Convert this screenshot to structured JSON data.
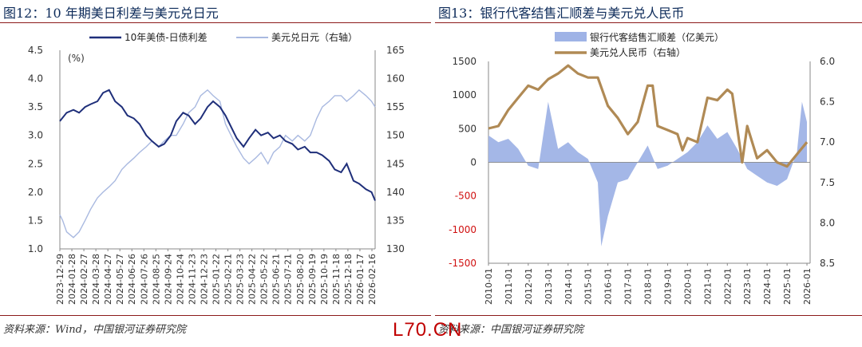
{
  "left": {
    "title": "图12：10 年期美日利差与美元兑日元",
    "source": "资料来源：Wind，中国银河证券研究院"
  },
  "right": {
    "title": "图13：银行代客结售汇顺差与美元兑人民币",
    "source": "资料来源：中国银河证券研究院"
  },
  "watermark": "L70.CN",
  "chart_data": [
    {
      "type": "line",
      "title": "10 年期美日利差与美元兑日元",
      "ylabel": "(%)",
      "ylim": [
        1.0,
        4.5
      ],
      "y2lim": [
        130,
        165
      ],
      "yticks": [
        "4.5",
        "4.0",
        "3.5",
        "3.0",
        "2.5",
        "2.0",
        "1.5",
        "1.0"
      ],
      "y2ticks": [
        "165",
        "160",
        "155",
        "150",
        "145",
        "140",
        "135",
        "130"
      ],
      "x_tick_labels": [
        "2023-12-29",
        "2024-01-28",
        "2024-02-27",
        "2024-03-28",
        "2024-04-27",
        "2024-05-27",
        "2024-06-26",
        "2024-07-26",
        "2024-08-25",
        "2024-09-24",
        "2024-10-24",
        "2024-11-23",
        "2024-12-23",
        "2025-01-22",
        "2025-02-21",
        "2025-03-23",
        "2025-04-22",
        "2025-05-22",
        "2025-06-21",
        "2025-07-21",
        "2025-08-20",
        "2025-09-19",
        "2025-10-19",
        "2025-11-18",
        "2025-12-18",
        "2026-01-17",
        "2026-02-16"
      ],
      "legend": [
        "10年美债-日债利差",
        "美元兑日元（右轴）"
      ],
      "legend_position": "top",
      "colors": {
        "spread": "#1f2f7a",
        "usdjpy": "#a9b9e0"
      },
      "series": [
        {
          "name": "10年美债-日债利差",
          "axis": "left",
          "x": [
            "2023-12-29",
            "2024-01-15",
            "2024-02-01",
            "2024-02-15",
            "2024-03-01",
            "2024-03-15",
            "2024-04-01",
            "2024-04-15",
            "2024-04-30",
            "2024-05-15",
            "2024-06-01",
            "2024-06-15",
            "2024-07-01",
            "2024-07-15",
            "2024-08-01",
            "2024-08-15",
            "2024-09-01",
            "2024-09-15",
            "2024-10-01",
            "2024-10-15",
            "2024-11-01",
            "2024-11-15",
            "2024-12-01",
            "2024-12-15",
            "2025-01-01",
            "2025-01-15",
            "2025-02-01",
            "2025-02-15",
            "2025-03-01",
            "2025-03-15",
            "2025-04-01",
            "2025-04-15",
            "2025-05-01",
            "2025-05-15",
            "2025-06-01",
            "2025-06-15",
            "2025-07-01",
            "2025-07-15",
            "2025-08-01",
            "2025-08-15",
            "2025-09-01",
            "2025-09-15",
            "2025-10-01",
            "2025-10-15",
            "2025-11-01",
            "2025-11-15",
            "2025-12-01",
            "2025-12-15",
            "2026-01-01",
            "2026-01-15",
            "2026-02-01",
            "2026-02-15",
            "2026-02-24"
          ],
          "values": [
            3.25,
            3.4,
            3.45,
            3.4,
            3.5,
            3.55,
            3.6,
            3.75,
            3.8,
            3.6,
            3.5,
            3.35,
            3.3,
            3.2,
            3.0,
            2.9,
            2.8,
            2.85,
            3.0,
            3.25,
            3.4,
            3.35,
            3.2,
            3.3,
            3.5,
            3.6,
            3.5,
            3.35,
            3.15,
            2.95,
            2.8,
            2.95,
            3.1,
            3.0,
            3.05,
            2.95,
            3.0,
            2.9,
            2.85,
            2.75,
            2.8,
            2.7,
            2.7,
            2.65,
            2.55,
            2.4,
            2.35,
            2.5,
            2.2,
            2.15,
            2.05,
            2.0,
            1.85
          ]
        },
        {
          "name": "美元兑日元（右轴）",
          "axis": "right",
          "x": [
            "2023-12-29",
            "2024-01-05",
            "2024-01-15",
            "2024-02-01",
            "2024-02-15",
            "2024-03-01",
            "2024-03-15",
            "2024-04-01",
            "2024-04-15",
            "2024-05-01",
            "2024-05-15",
            "2024-06-01",
            "2024-06-15",
            "2024-07-01",
            "2024-07-15",
            "2024-08-01",
            "2024-08-15",
            "2024-09-01",
            "2024-09-15",
            "2024-10-01",
            "2024-10-15",
            "2024-11-01",
            "2024-11-15",
            "2024-12-01",
            "2024-12-15",
            "2025-01-01",
            "2025-01-15",
            "2025-02-01",
            "2025-02-15",
            "2025-03-01",
            "2025-03-15",
            "2025-04-01",
            "2025-04-15",
            "2025-05-01",
            "2025-05-15",
            "2025-06-01",
            "2025-06-15",
            "2025-07-01",
            "2025-07-15",
            "2025-08-01",
            "2025-08-15",
            "2025-09-01",
            "2025-09-15",
            "2025-10-01",
            "2025-10-15",
            "2025-11-01",
            "2025-11-15",
            "2025-12-01",
            "2025-12-15",
            "2026-01-01",
            "2026-01-15",
            "2026-02-01",
            "2026-02-15",
            "2026-02-24"
          ],
          "values": [
            136,
            135,
            133,
            132,
            133,
            135,
            137,
            139,
            140,
            141,
            142,
            144,
            145,
            146,
            147,
            148,
            149,
            148,
            149,
            150,
            150,
            152,
            154,
            155,
            157,
            158,
            157,
            156,
            152,
            150,
            148,
            146,
            145,
            146,
            147,
            145,
            147,
            148,
            150,
            149,
            150,
            149,
            150,
            153,
            155,
            156,
            157,
            157,
            156,
            157,
            158,
            157,
            156,
            155
          ]
        }
      ]
    },
    {
      "type": "bar",
      "title": "银行代客结售汇顺差与美元兑人民币",
      "ylim": [
        -1500,
        1500
      ],
      "y2lim": [
        6.0,
        8.5
      ],
      "y2_inverted": true,
      "yticks": [
        "1500",
        "1000",
        "500",
        "0",
        "-500",
        "-1000",
        "-1500"
      ],
      "y2ticks": [
        "6.0",
        "6.5",
        "7.0",
        "7.5",
        "8.0",
        "8.5"
      ],
      "x_tick_labels": [
        "2010-01",
        "2011-01",
        "2012-01",
        "2013-01",
        "2014-01",
        "2015-01",
        "2016-01",
        "2017-01",
        "2018-01",
        "2019-01",
        "2020-01",
        "2021-01",
        "2022-01",
        "2023-01",
        "2024-01",
        "2025-01",
        "2026-01"
      ],
      "legend": [
        "银行代客结售汇顺差（亿美元）",
        "美元兑人民币（右轴）"
      ],
      "legend_position": "top",
      "colors": {
        "surplus": "#9fb3e6",
        "usdcny": "#b08a55"
      },
      "series": [
        {
          "name": "银行代客结售汇顺差（亿美元）",
          "axis": "left",
          "x": [
            "2010-01",
            "2010-07",
            "2011-01",
            "2011-07",
            "2012-01",
            "2012-07",
            "2013-01",
            "2013-07",
            "2014-01",
            "2014-07",
            "2015-01",
            "2015-07",
            "2015-09",
            "2016-01",
            "2016-07",
            "2017-01",
            "2017-07",
            "2018-01",
            "2018-07",
            "2019-01",
            "2019-07",
            "2020-01",
            "2020-07",
            "2021-01",
            "2021-07",
            "2022-01",
            "2022-07",
            "2023-01",
            "2023-07",
            "2024-01",
            "2024-07",
            "2025-01",
            "2025-07",
            "2025-10",
            "2026-01"
          ],
          "values": [
            400,
            300,
            350,
            200,
            -50,
            -100,
            900,
            200,
            300,
            150,
            50,
            -300,
            -1250,
            -800,
            -300,
            -250,
            0,
            250,
            -100,
            -50,
            50,
            150,
            300,
            550,
            350,
            450,
            200,
            -100,
            -200,
            -300,
            -350,
            -250,
            150,
            900,
            600
          ]
        },
        {
          "name": "美元兑人民币（右轴）",
          "axis": "right",
          "x": [
            "2010-01",
            "2010-07",
            "2011-01",
            "2011-07",
            "2012-01",
            "2012-07",
            "2013-01",
            "2013-07",
            "2014-01",
            "2014-07",
            "2015-01",
            "2015-07",
            "2016-01",
            "2016-07",
            "2017-01",
            "2017-07",
            "2018-01",
            "2018-04",
            "2018-07",
            "2019-01",
            "2019-07",
            "2019-10",
            "2020-01",
            "2020-07",
            "2021-01",
            "2021-07",
            "2022-01",
            "2022-04",
            "2022-10",
            "2023-01",
            "2023-07",
            "2024-01",
            "2024-07",
            "2025-01",
            "2025-07",
            "2026-01"
          ],
          "values": [
            6.83,
            6.8,
            6.6,
            6.45,
            6.3,
            6.35,
            6.22,
            6.15,
            6.05,
            6.15,
            6.2,
            6.2,
            6.55,
            6.7,
            6.9,
            6.75,
            6.3,
            6.3,
            6.8,
            6.85,
            6.9,
            7.1,
            6.95,
            7.0,
            6.45,
            6.48,
            6.35,
            6.4,
            7.25,
            6.8,
            7.2,
            7.1,
            7.25,
            7.3,
            7.15,
            7.0
          ]
        }
      ]
    }
  ]
}
